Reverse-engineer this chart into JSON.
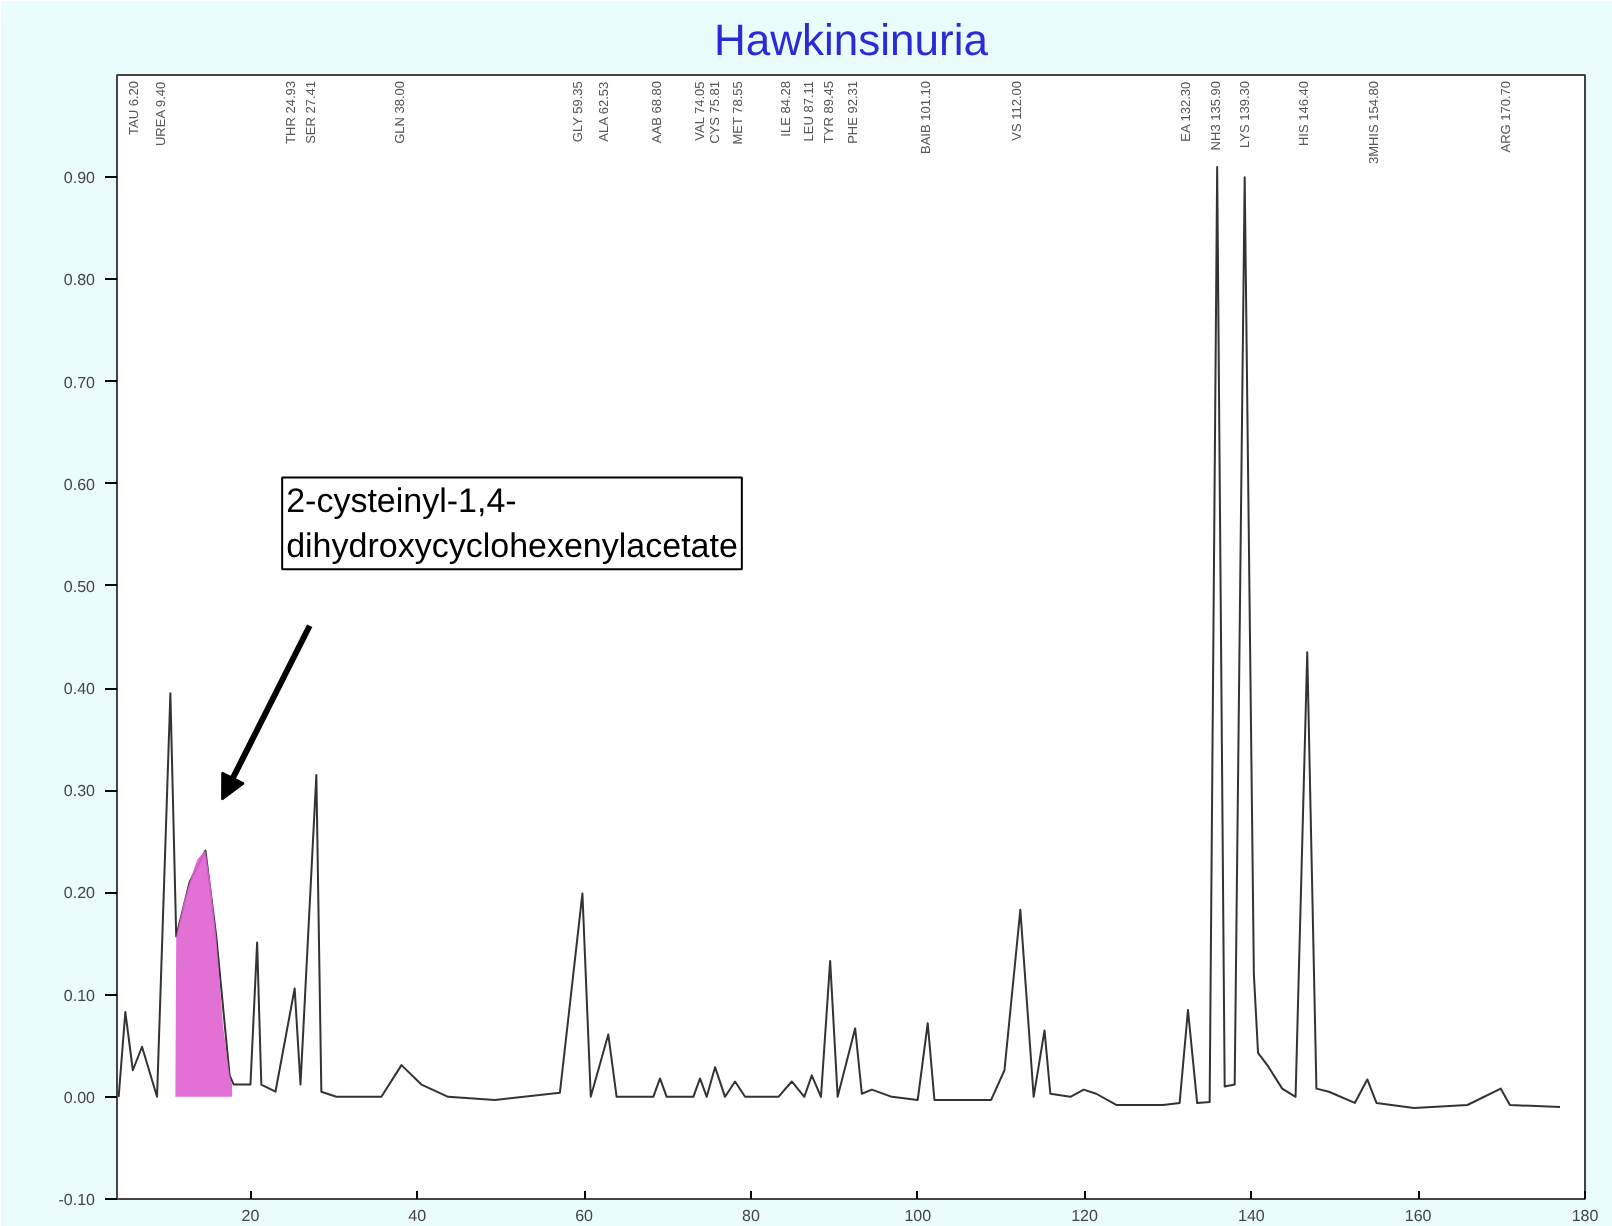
{
  "chart_data": {
    "type": "line",
    "title": "Hawkinsinuria",
    "xlim": [
      4,
      180
    ],
    "ylim": [
      -0.1,
      1.0
    ],
    "xticks": [
      20,
      40,
      60,
      80,
      100,
      120,
      140,
      160,
      180
    ],
    "yticks": [
      {
        "value": -0.1,
        "label": "-0.10"
      },
      {
        "value": 0,
        "label": "0.00"
      },
      {
        "value": 0.1,
        "label": "0.10"
      },
      {
        "value": 0.2,
        "label": "0.20"
      },
      {
        "value": 0.3,
        "label": "0.30"
      },
      {
        "value": 0.4,
        "label": "0.40"
      },
      {
        "value": 0.5,
        "label": "0.50"
      },
      {
        "value": 0.6,
        "label": "0.60"
      },
      {
        "value": 0.7,
        "label": "0.70"
      },
      {
        "value": 0.8,
        "label": "0.80"
      },
      {
        "value": 0.9,
        "label": "0.90"
      }
    ],
    "grid": false,
    "series": [
      {
        "color": "#333333",
        "x": [
          4.2,
          5.0,
          5.9,
          7.0,
          8.8,
          10.4,
          11.1,
          12.7,
          14.6,
          15.9,
          17.5,
          18.0,
          20.0,
          20.8,
          21.3,
          23.0,
          25.3,
          26.0,
          27.9,
          28.5,
          30.3,
          35.7,
          38.1,
          40.5,
          43.7,
          49.3,
          57.1,
          59.8,
          60.8,
          62.9,
          63.9,
          68.3,
          69.1,
          69.9,
          73.1,
          73.9,
          74.7,
          75.7,
          76.9,
          78.1,
          79.3,
          83.3,
          84.9,
          86.4,
          87.3,
          88.4,
          89.5,
          90.4,
          92.5,
          93.3,
          94.5,
          96.9,
          100.0,
          101.2,
          102.0,
          108.8,
          110.4,
          112.3,
          113.9,
          115.2,
          115.9,
          118.3,
          119.9,
          121.4,
          123.8,
          129.4,
          131.4,
          132.4,
          133.5,
          135.0,
          135.9,
          136.8,
          138.0,
          139.2,
          140.3,
          140.8,
          142.0,
          143.7,
          145.3,
          146.7,
          147.8,
          149.3,
          152.4,
          153.9,
          155.0,
          159.5,
          165.9,
          169.9,
          171.0,
          177.0
        ],
        "values": [
          0.0,
          0.083,
          0.026,
          0.049,
          0.0,
          0.395,
          0.157,
          0.21,
          0.241,
          0.157,
          0.021,
          0.012,
          0.012,
          0.151,
          0.012,
          0.005,
          0.106,
          0.012,
          0.315,
          0.005,
          0.0,
          0.0,
          0.031,
          0.012,
          0.0,
          -0.003,
          0.004,
          0.199,
          0.0,
          0.061,
          0.0,
          0.0,
          0.018,
          0.0,
          0.0,
          0.018,
          0.0,
          0.029,
          0.0,
          0.015,
          0.0,
          0.0,
          0.015,
          0.0,
          0.021,
          0.0,
          0.133,
          0.0,
          0.067,
          0.003,
          0.007,
          0.0,
          -0.003,
          0.072,
          -0.003,
          -0.003,
          0.026,
          0.183,
          0.0,
          0.065,
          0.003,
          0.0,
          0.007,
          0.003,
          -0.008,
          -0.008,
          -0.006,
          0.085,
          -0.006,
          -0.005,
          0.91,
          0.01,
          0.012,
          0.9,
          0.12,
          0.043,
          0.03,
          0.008,
          0.0,
          0.435,
          0.008,
          0.005,
          -0.006,
          0.017,
          -0.006,
          -0.011,
          -0.008,
          0.008,
          -0.008,
          -0.01
        ]
      },
      {
        "type": "area",
        "color": "#e060d0",
        "x": [
          11.0,
          11.1,
          12.0,
          12.7,
          13.6,
          14.6,
          15.2,
          15.9,
          16.7,
          17.5,
          17.8
        ],
        "values": [
          0.0,
          0.157,
          0.19,
          0.21,
          0.232,
          0.241,
          0.21,
          0.157,
          0.07,
          0.021,
          0.012
        ]
      }
    ],
    "annotations": [
      "TAU 6.20",
      "UREA 9.40",
      "THR 24.93",
      "SER 27.41",
      "GLN 38.00",
      "GLY 59.35",
      "ALA 62.53",
      "AAB 68.80",
      "VAL 74.05",
      "CYS 75.81",
      "MET 78.55",
      "ILE 84.28",
      "LEU 87.11",
      "TYR 89.45",
      "PHE 92.31",
      "BAIB 101.10",
      "VS 112.00",
      "EA 132.30",
      "NH3 135.90",
      "LYS 139.30",
      "HIS 146.40",
      "3MHIS 154.80",
      "ARG 170.70",
      "2-cysteinyl-1,4-dihydroxycyclohexenylacetate"
    ]
  }
}
